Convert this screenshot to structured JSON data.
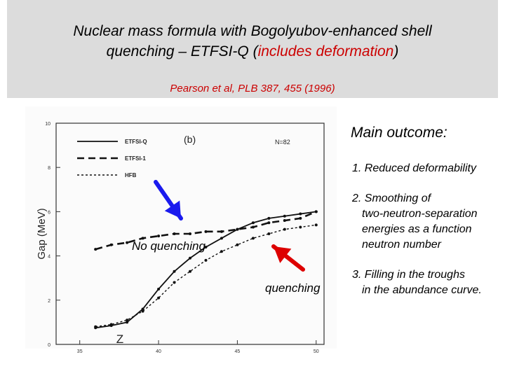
{
  "header": {
    "title_part1": "Nuclear mass formula with Bogolyubov-enhanced  shell",
    "title_part2": "quenching – ETFSI-Q (",
    "title_highlight": "includes deformation",
    "title_part3": ")",
    "reference": "Pearson et al, PLB 387, 455 (1996)",
    "highlight_color": "#cc0000"
  },
  "chart_data": {
    "type": "line",
    "panel_label": "(b)",
    "panel_note": "N=82",
    "xlabel": "Z",
    "ylabel": "Gap (MeV)",
    "xlim": [
      33.5,
      50.5
    ],
    "ylim": [
      0,
      10
    ],
    "xticks": [
      "35",
      "40",
      "45",
      "50"
    ],
    "yticks": [
      "0",
      "2",
      "4",
      "6",
      "8",
      "10"
    ],
    "legend_position": "top-left",
    "series": [
      {
        "name": "ETFSI-Q",
        "style": "solid",
        "x": [
          36,
          37,
          38,
          39,
          40,
          41,
          42,
          43,
          44,
          45,
          46,
          47,
          48,
          49,
          50
        ],
        "y": [
          0.75,
          0.85,
          1.0,
          1.6,
          2.5,
          3.3,
          3.9,
          4.4,
          4.8,
          5.2,
          5.5,
          5.7,
          5.8,
          5.9,
          6.0
        ]
      },
      {
        "name": "ETFSI-1",
        "style": "dashed",
        "x": [
          36,
          37,
          38,
          39,
          40,
          41,
          42,
          43,
          44,
          45,
          46,
          47,
          48,
          49,
          50
        ],
        "y": [
          4.3,
          4.5,
          4.6,
          4.8,
          4.9,
          5.0,
          5.0,
          5.1,
          5.1,
          5.2,
          5.3,
          5.5,
          5.6,
          5.7,
          6.0
        ]
      },
      {
        "name": "HFB",
        "style": "dotted",
        "x": [
          36,
          37,
          38,
          39,
          40,
          41,
          42,
          43,
          44,
          45,
          46,
          47,
          48,
          49,
          50
        ],
        "y": [
          0.8,
          0.9,
          1.1,
          1.5,
          2.1,
          2.8,
          3.3,
          3.8,
          4.2,
          4.5,
          4.8,
          5.0,
          5.2,
          5.3,
          5.4
        ]
      }
    ]
  },
  "annotations": {
    "no_quenching": "No quenching",
    "quenching": "quenching",
    "arrow_color": "#1a1aee",
    "arrow_color_2": "#dd0000"
  },
  "outcome": {
    "heading": "Main outcome:",
    "items": [
      "1.  Reduced deformability",
      "2.  Smoothing of",
      "two-neutron-separation",
      "energies as a function",
      "neutron number",
      "3.  Filling in the troughs",
      "in the abundance curve."
    ]
  }
}
